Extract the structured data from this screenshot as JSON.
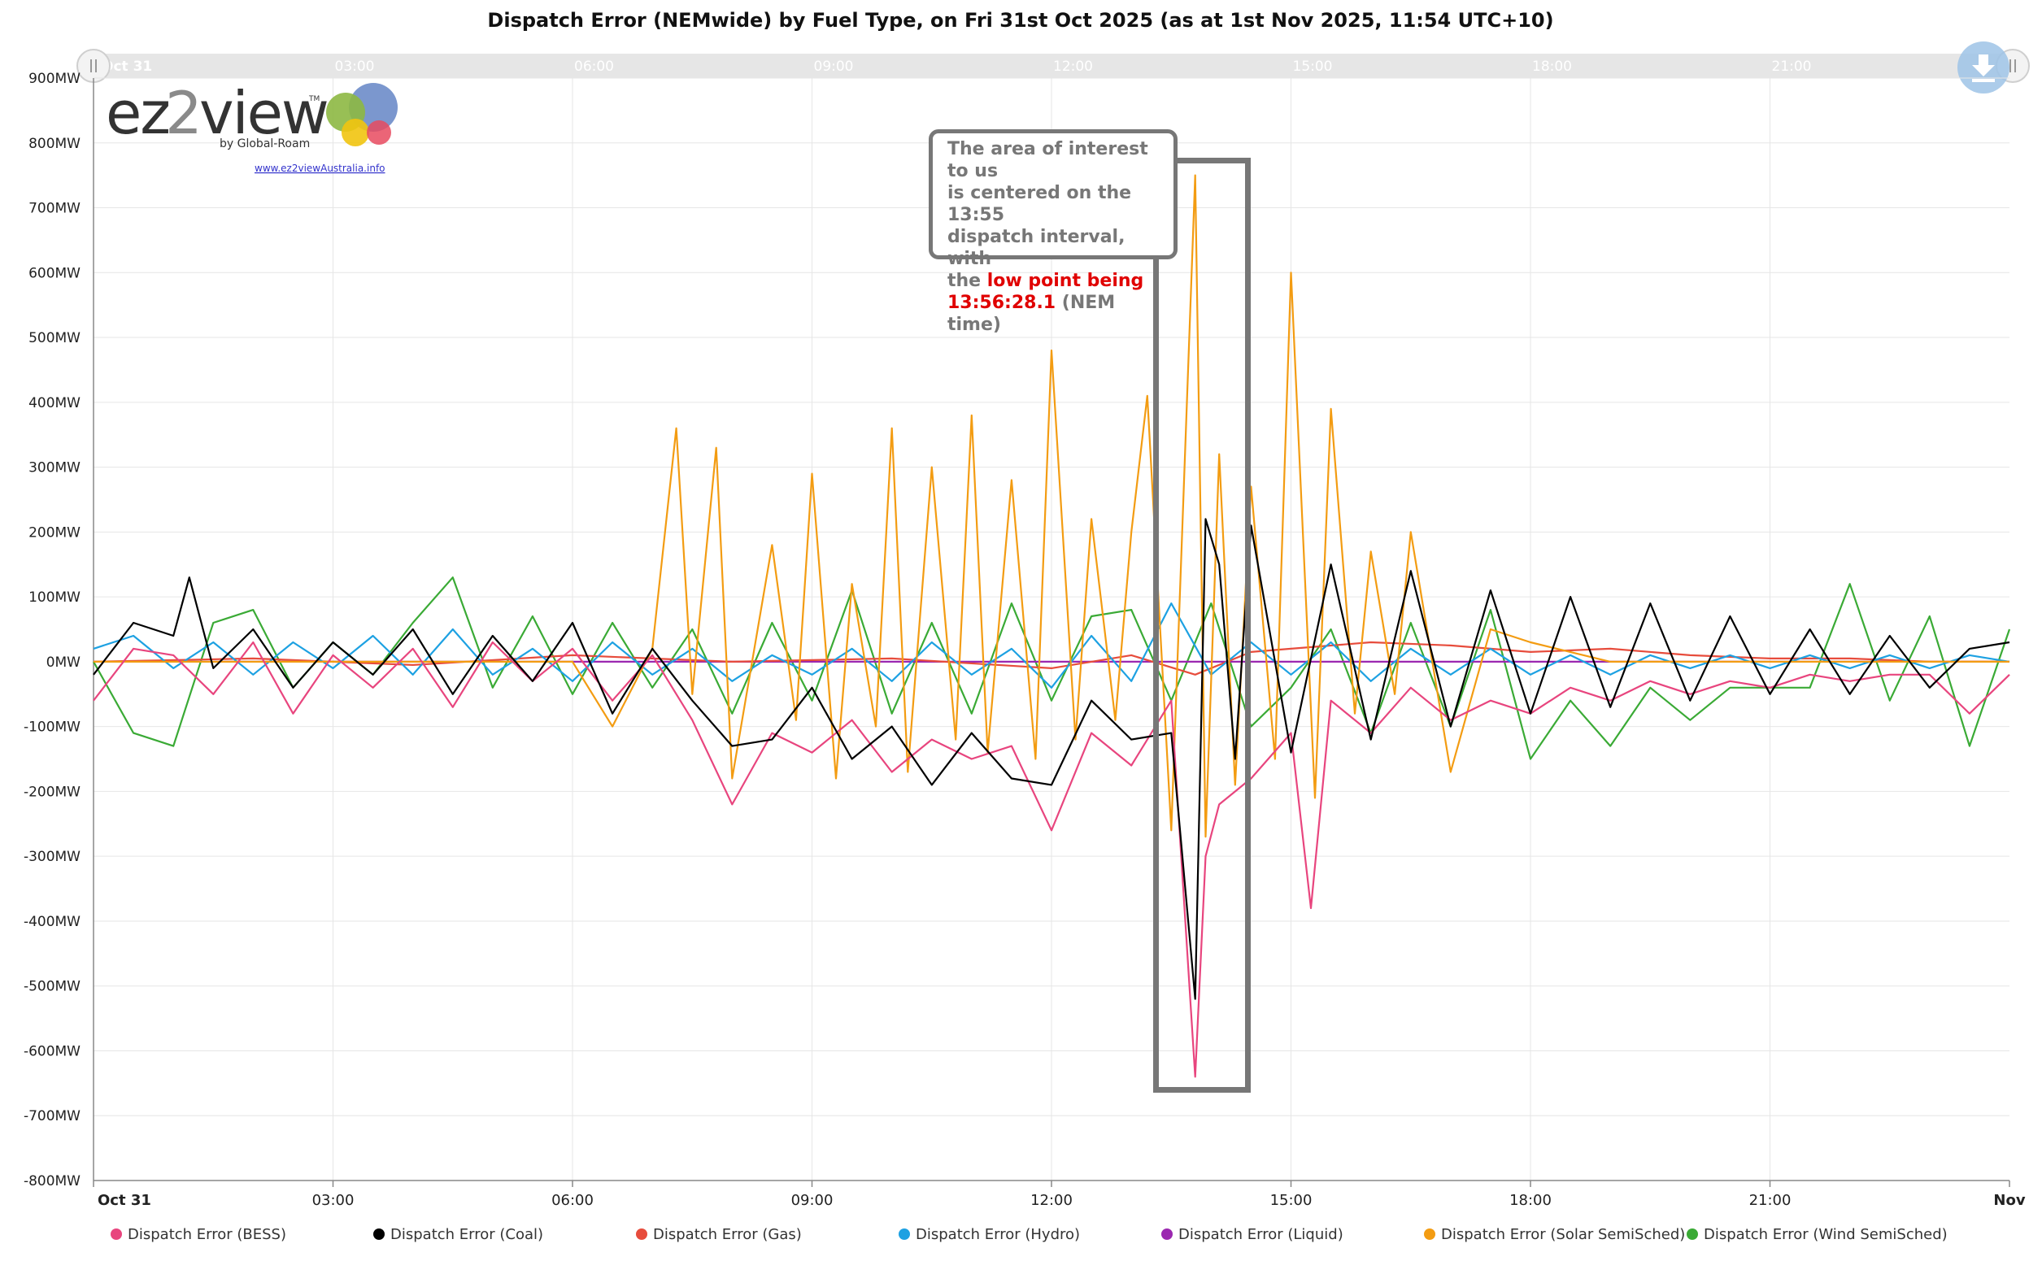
{
  "chart_data": {
    "type": "line",
    "title": "Dispatch Error (NEMwide) by Fuel Type, on Fri 31st Oct 2025 (as at 1st Nov 2025, 11:54 UTC+10)",
    "y_unit": "MW",
    "ylim": [
      -800,
      900
    ],
    "yticks": [
      "900MW",
      "800MW",
      "700MW",
      "600MW",
      "500MW",
      "400MW",
      "300MW",
      "200MW",
      "100MW",
      "0MW",
      "-100MW",
      "-200MW",
      "-300MW",
      "-400MW",
      "-500MW",
      "-600MW",
      "-700MW",
      "-800MW"
    ],
    "xticks": [
      "Oct 31",
      "03:00",
      "06:00",
      "09:00",
      "12:00",
      "15:00",
      "18:00",
      "21:00",
      "Nov"
    ],
    "x_range_hours": [
      0,
      24
    ],
    "grid": true,
    "legend_placement": "bottom",
    "series": [
      {
        "name": "Dispatch Error (BESS)",
        "color": "#e8457e",
        "x": [
          0,
          0.5,
          1,
          1.5,
          2,
          2.5,
          3,
          3.5,
          4,
          4.5,
          5,
          5.5,
          6,
          6.5,
          7,
          7.5,
          8,
          8.5,
          9,
          9.5,
          10,
          10.5,
          11,
          11.5,
          12,
          12.5,
          13,
          13.5,
          13.8,
          13.93,
          14.1,
          14.5,
          15,
          15.25,
          15.5,
          16,
          16.5,
          17,
          17.5,
          18,
          18.5,
          19,
          19.5,
          20,
          20.5,
          21,
          21.5,
          22,
          22.5,
          23,
          23.5,
          24
        ],
        "y": [
          -60,
          20,
          10,
          -50,
          30,
          -80,
          10,
          -40,
          20,
          -70,
          30,
          -30,
          20,
          -60,
          10,
          -90,
          -220,
          -110,
          -140,
          -90,
          -170,
          -120,
          -150,
          -130,
          -260,
          -110,
          -160,
          -60,
          -640,
          -300,
          -220,
          -180,
          -110,
          -380,
          -60,
          -110,
          -40,
          -90,
          -60,
          -80,
          -40,
          -60,
          -30,
          -50,
          -30,
          -40,
          -20,
          -30,
          -20,
          -20,
          -80,
          -20
        ]
      },
      {
        "name": "Dispatch Error (Coal)",
        "color": "#000000",
        "x": [
          0,
          0.5,
          1,
          1.2,
          1.5,
          2,
          2.5,
          3,
          3.5,
          4,
          4.5,
          5,
          5.5,
          6,
          6.5,
          7,
          7.5,
          8,
          8.5,
          9,
          9.5,
          10,
          10.5,
          11,
          11.5,
          12,
          12.5,
          13,
          13.5,
          13.8,
          13.93,
          14.1,
          14.3,
          14.5,
          15,
          15.5,
          16,
          16.5,
          17,
          17.5,
          18,
          18.5,
          19,
          19.5,
          20,
          20.5,
          21,
          21.5,
          22,
          22.5,
          23,
          23.5,
          24
        ],
        "y": [
          -20,
          60,
          40,
          130,
          -10,
          50,
          -40,
          30,
          -20,
          50,
          -50,
          40,
          -30,
          60,
          -80,
          20,
          -60,
          -130,
          -120,
          -40,
          -150,
          -100,
          -190,
          -110,
          -180,
          -190,
          -60,
          -120,
          -110,
          -520,
          220,
          150,
          -150,
          210,
          -140,
          150,
          -120,
          140,
          -100,
          110,
          -80,
          100,
          -70,
          90,
          -60,
          70,
          -50,
          50,
          -50,
          40,
          -40,
          20,
          30
        ]
      },
      {
        "name": "Dispatch Error (Gas)",
        "color": "#e74c3c",
        "x": [
          0,
          2,
          4,
          6,
          8,
          10,
          12,
          13,
          13.8,
          14.5,
          15,
          16,
          17,
          18,
          19,
          20,
          21,
          22,
          23,
          24
        ],
        "y": [
          0,
          5,
          -5,
          10,
          0,
          5,
          -10,
          10,
          -20,
          15,
          20,
          30,
          25,
          15,
          20,
          10,
          5,
          5,
          0,
          0
        ]
      },
      {
        "name": "Dispatch Error (Hydro)",
        "color": "#1da1e2",
        "x": [
          0,
          0.5,
          1,
          1.5,
          2,
          2.5,
          3,
          3.5,
          4,
          4.5,
          5,
          5.5,
          6,
          6.5,
          7,
          7.5,
          8,
          8.5,
          9,
          9.5,
          10,
          10.5,
          11,
          11.5,
          12,
          12.5,
          13,
          13.5,
          14,
          14.5,
          15,
          15.5,
          16,
          16.5,
          17,
          17.5,
          18,
          18.5,
          19,
          19.5,
          20,
          20.5,
          21,
          21.5,
          22,
          22.5,
          23,
          23.5,
          24
        ],
        "y": [
          20,
          40,
          -10,
          30,
          -20,
          30,
          -10,
          40,
          -20,
          50,
          -20,
          20,
          -30,
          30,
          -20,
          20,
          -30,
          10,
          -20,
          20,
          -30,
          30,
          -20,
          20,
          -40,
          40,
          -30,
          90,
          -20,
          30,
          -20,
          30,
          -30,
          20,
          -20,
          20,
          -20,
          10,
          -20,
          10,
          -10,
          10,
          -10,
          10,
          -10,
          10,
          -10,
          10,
          0
        ]
      },
      {
        "name": "Dispatch Error (Liquid)",
        "color": "#9b27b0",
        "x": [
          0,
          6,
          12,
          18,
          24
        ],
        "y": [
          0,
          0,
          0,
          0,
          0
        ]
      },
      {
        "name": "Dispatch Error (Solar SemiSched)",
        "color": "#f39c12",
        "x": [
          0,
          6,
          6.5,
          7,
          7.3,
          7.5,
          7.8,
          8,
          8.5,
          8.8,
          9,
          9.3,
          9.5,
          9.8,
          10,
          10.2,
          10.5,
          10.8,
          11,
          11.2,
          11.5,
          11.8,
          12,
          12.3,
          12.5,
          12.8,
          13,
          13.2,
          13.5,
          13.8,
          13.93,
          14.1,
          14.3,
          14.5,
          14.8,
          15,
          15.3,
          15.5,
          15.8,
          16,
          16.3,
          16.5,
          17,
          17.5,
          18,
          19,
          24
        ],
        "y": [
          0,
          0,
          -100,
          20,
          360,
          -50,
          330,
          -180,
          180,
          -90,
          290,
          -180,
          120,
          -100,
          360,
          -170,
          300,
          -120,
          380,
          -140,
          280,
          -150,
          480,
          -120,
          220,
          -90,
          200,
          410,
          -260,
          750,
          -270,
          320,
          -190,
          270,
          -150,
          600,
          -210,
          390,
          -80,
          170,
          -50,
          200,
          -170,
          50,
          30,
          0,
          0
        ]
      },
      {
        "name": "Dispatch Error (Wind SemiSched)",
        "color": "#3aaa35",
        "x": [
          0,
          0.5,
          1,
          1.5,
          2,
          2.5,
          3,
          3.5,
          4,
          4.5,
          5,
          5.5,
          6,
          6.5,
          7,
          7.5,
          8,
          8.5,
          9,
          9.5,
          10,
          10.5,
          11,
          11.5,
          12,
          12.5,
          13,
          13.5,
          14,
          14.5,
          15,
          15.5,
          16,
          16.5,
          17,
          17.5,
          18,
          18.5,
          19,
          19.5,
          20,
          20.5,
          21,
          21.5,
          22,
          22.5,
          23,
          23.5,
          24
        ],
        "y": [
          0,
          -110,
          -130,
          60,
          80,
          -40,
          30,
          -20,
          60,
          130,
          -40,
          70,
          -50,
          60,
          -40,
          50,
          -80,
          60,
          -60,
          110,
          -80,
          60,
          -80,
          90,
          -60,
          70,
          80,
          -60,
          90,
          -100,
          -40,
          50,
          -110,
          60,
          -100,
          80,
          -150,
          -60,
          -130,
          -40,
          -90,
          -40,
          -40,
          -40,
          120,
          -60,
          70,
          -130,
          50
        ]
      }
    ]
  },
  "annotation": {
    "line1": "The area of interest to us",
    "line2": "is centered on the 13:55",
    "line3": "dispatch interval, with",
    "line4_pre": "the ",
    "line4_hl": "low point being",
    "line5_hl": "13:56:28.1",
    "line5_post": " (NEM time)"
  },
  "logo": {
    "main_a": "ez",
    "main_b": "2",
    "main_c": "view",
    "tm": "TM",
    "sub": "by Global-Roam",
    "link": "www.ez2viewAustralia.info"
  },
  "navigator": {
    "start_label": "Oct 31"
  }
}
